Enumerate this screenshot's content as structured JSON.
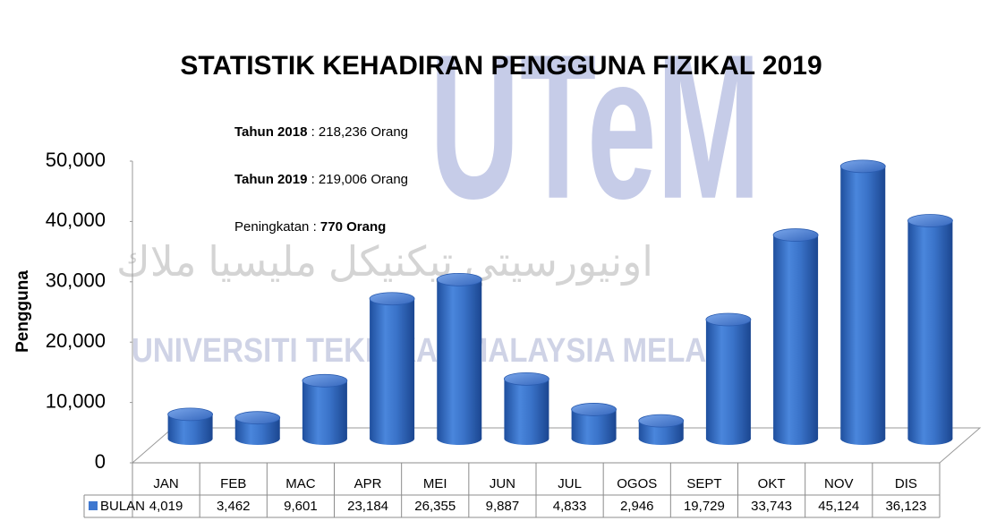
{
  "chart_data": {
    "type": "bar3d",
    "title": "STATISTIK KEHADIRAN PENGGUNA FIZIKAL 2019",
    "y_label": "Pengguna",
    "watermark": {
      "logo": "UTeM",
      "name": "UNIVERSITI TEKNIKAL MALAYSIA MELAKA",
      "arabic": "اونيورسيتي تيكنيكل مليسيا ملاك"
    },
    "annotations": [
      [
        {
          "text": "Tahun 2018",
          "bold": true
        },
        {
          "text": " : 218,236 Orang",
          "bold": false
        }
      ],
      [
        {
          "text": "Tahun 2019",
          "bold": true
        },
        {
          "text": " : 219,006 Orang",
          "bold": false
        }
      ],
      [
        {
          "text": "Peningkatan : ",
          "bold": false
        },
        {
          "text": "770 Orang",
          "bold": true
        }
      ]
    ],
    "categories": [
      "JAN",
      "FEB",
      "MAC",
      "APR",
      "MEI",
      "JUN",
      "JUL",
      "OGOS",
      "SEPT",
      "OKT",
      "NOV",
      "DIS"
    ],
    "series": [
      {
        "name": "BULAN",
        "color": "#3f78d0",
        "values": [
          4019,
          3462,
          9601,
          23184,
          26355,
          9887,
          4833,
          2946,
          19729,
          33743,
          45124,
          36123
        ],
        "value_labels": [
          "4,019",
          "3,462",
          "9,601",
          "23,184",
          "26,355",
          "9,887",
          "4,833",
          "2,946",
          "19,729",
          "33,743",
          "45,124",
          "36,123"
        ]
      }
    ],
    "ylim": [
      0,
      50000
    ],
    "yticks": [
      0,
      {
        "value": 10000,
        "label": "10,000"
      },
      {
        "value": 20000,
        "label": "20,000"
      },
      {
        "value": 30000,
        "label": "30,000"
      },
      {
        "value": 40000,
        "label": "40,000"
      },
      {
        "value": 50000,
        "label": "50,000"
      }
    ]
  }
}
